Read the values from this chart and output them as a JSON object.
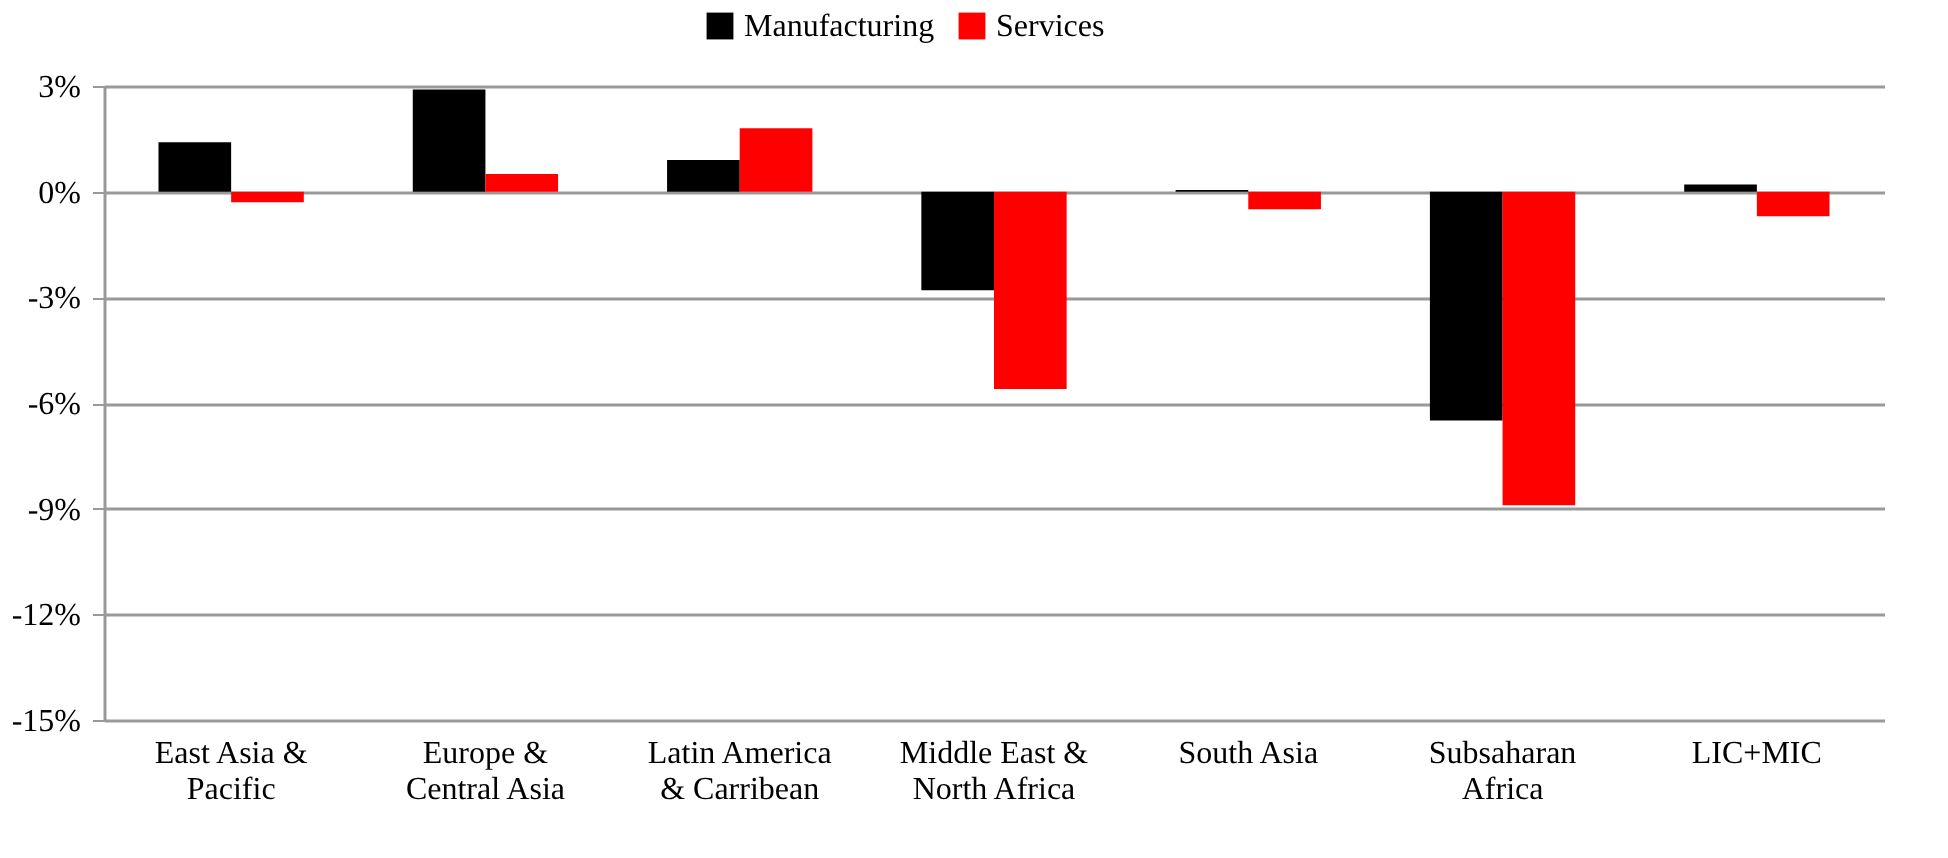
{
  "chart_data": {
    "type": "bar",
    "categories": [
      "East Asia &\nPacific",
      "Europe &\nCentral Asia",
      "Latin America\n& Carribean",
      "Middle East &\nNorth Africa",
      "South Asia",
      "Subsaharan\nAfrica",
      "LIC+MIC"
    ],
    "series": [
      {
        "name": "Manufacturing",
        "color": "#000000",
        "values": [
          1.4,
          2.9,
          0.9,
          -2.8,
          0.05,
          -6.5,
          0.2
        ]
      },
      {
        "name": "Services",
        "color": "#ff0000",
        "values": [
          -0.3,
          0.5,
          1.8,
          -5.6,
          -0.5,
          -8.9,
          -0.7
        ]
      }
    ],
    "ylim": [
      -15,
      3
    ],
    "yticks": [
      {
        "value": -15,
        "label": "-15%"
      },
      {
        "value": -12,
        "label": "-12%"
      },
      {
        "value": -9,
        "label": "-9%"
      },
      {
        "value": -6,
        "label": "-6%"
      },
      {
        "value": -3,
        "label": "-3%"
      },
      {
        "value": 0,
        "label": "0%"
      },
      {
        "value": 3,
        "label": "3%"
      }
    ],
    "grid": "y",
    "legend": "top"
  }
}
